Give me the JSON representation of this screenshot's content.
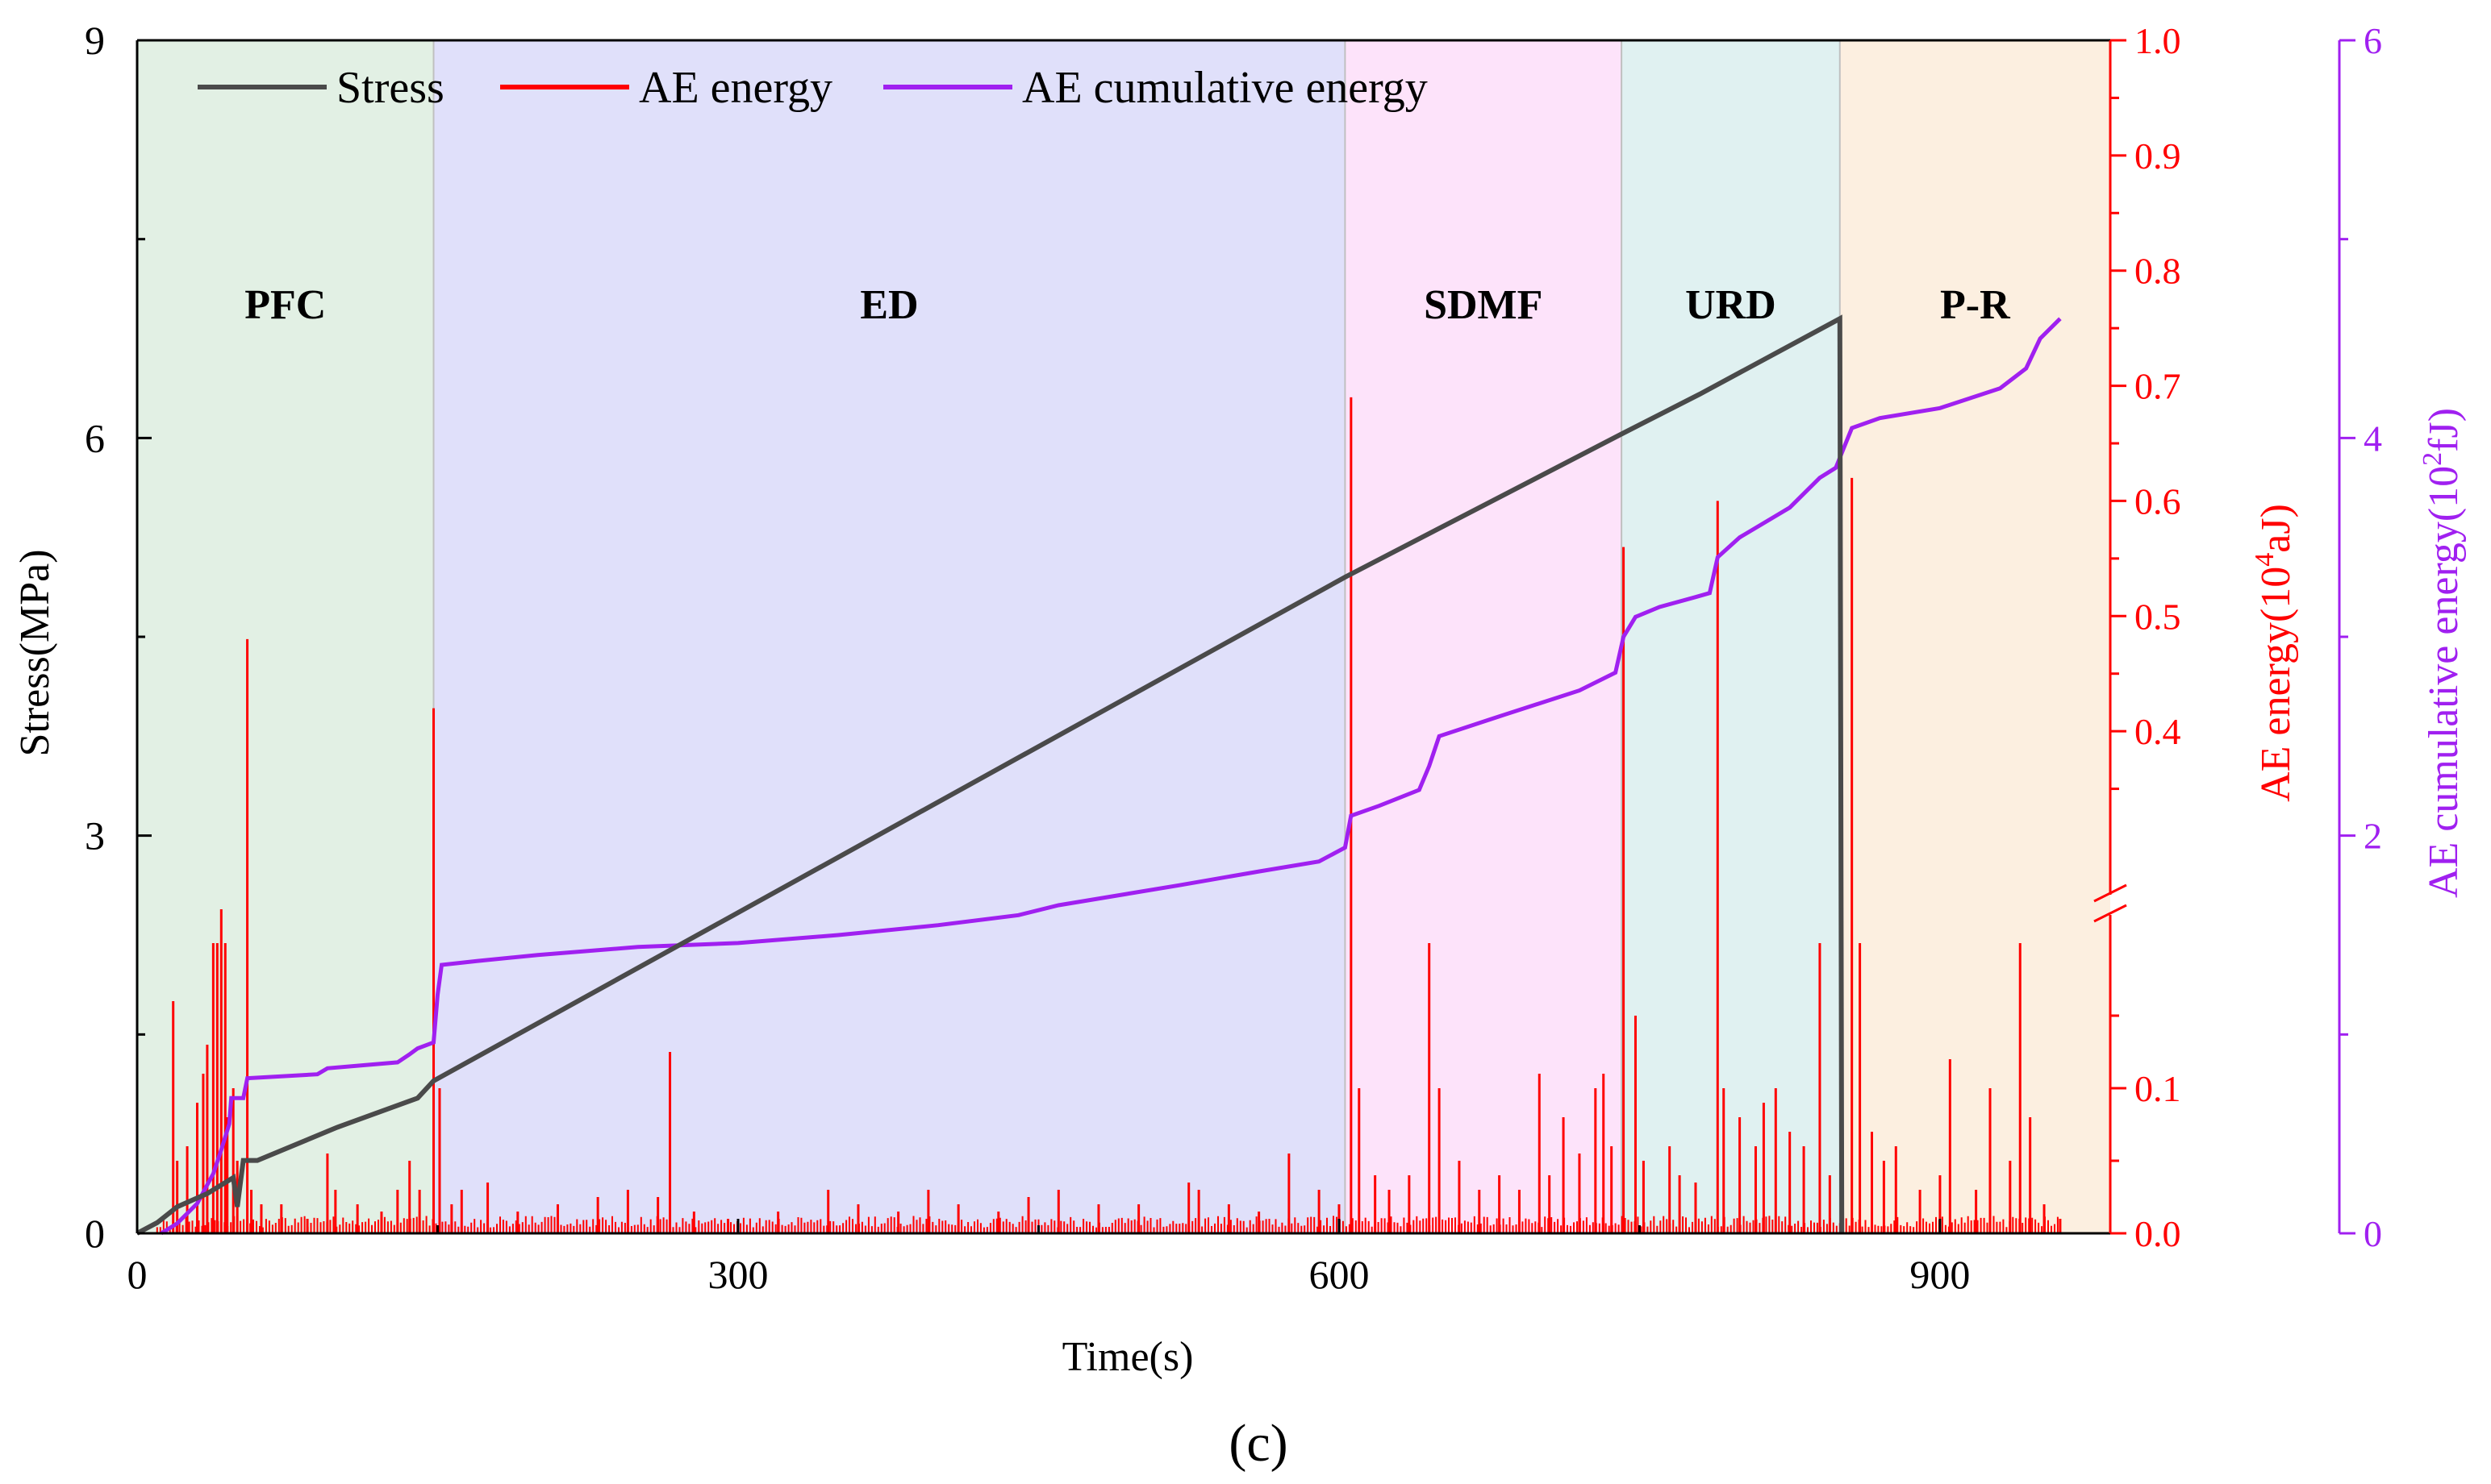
{
  "caption": "(c)",
  "chart_data": {
    "type": "line",
    "x_label": "Time(s)",
    "x_range": [
      0,
      985
    ],
    "x_ticks": [
      0,
      300,
      600,
      900
    ],
    "y_left": {
      "label": "Stress(MPa)",
      "range": [
        0,
        9
      ],
      "ticks": [
        0,
        3,
        6,
        9
      ],
      "color": "#000000"
    },
    "y_right": {
      "label_text": "AE energy(10",
      "label_sup": "4",
      "label_end": "aJ)",
      "color": "#ff0000",
      "broken": true,
      "break_at": 0.2,
      "lower_range": [
        0,
        0.2
      ],
      "upper_range": [
        0.3,
        1.0
      ],
      "tick_labels": [
        {
          "v": 0.0,
          "t": "0.0"
        },
        {
          "v": 0.1,
          "t": "0.1"
        },
        {
          "v": 0.4,
          "t": "0.4"
        },
        {
          "v": 0.5,
          "t": "0.5"
        },
        {
          "v": 0.6,
          "t": "0.6"
        },
        {
          "v": 0.7,
          "t": "0.7"
        },
        {
          "v": 0.8,
          "t": "0.8"
        },
        {
          "v": 0.9,
          "t": "0.9"
        },
        {
          "v": 1.0,
          "t": "1.0"
        }
      ],
      "minor_ticks": [
        0.05,
        0.15,
        0.35,
        0.45,
        0.55,
        0.65,
        0.75,
        0.85,
        0.95
      ]
    },
    "y_right2": {
      "label_text": "AE cumulative energy(10",
      "label_sup": "2",
      "label_end": "fJ)",
      "color": "#a020f0",
      "range": [
        0,
        6
      ],
      "ticks": [
        0,
        2,
        4,
        6
      ]
    },
    "regions": [
      {
        "label": "PFC",
        "start": 0,
        "end": 148,
        "color": "#e2f0e4"
      },
      {
        "label": "ED",
        "start": 148,
        "end": 603,
        "color": "#e0e0fa"
      },
      {
        "label": "SDMF",
        "start": 603,
        "end": 741,
        "color": "#fde3fa"
      },
      {
        "label": "URD",
        "start": 741,
        "end": 850,
        "color": "#e0f1f1"
      },
      {
        "label": "P-R",
        "start": 850,
        "end": 985,
        "color": "#fcefe0"
      }
    ],
    "legend": [
      "Stress",
      "AE energy",
      "AE cumulative energy"
    ],
    "series": [
      {
        "name": "Stress",
        "color": "#4a4a4a",
        "axis": "left",
        "points": [
          [
            0,
            0
          ],
          [
            10,
            0.08
          ],
          [
            20,
            0.2
          ],
          [
            35,
            0.3
          ],
          [
            48,
            0.42
          ],
          [
            50,
            0.2
          ],
          [
            53,
            0.55
          ],
          [
            60,
            0.55
          ],
          [
            100,
            0.8
          ],
          [
            140,
            1.02
          ],
          [
            148,
            1.15
          ],
          [
            603,
            4.95
          ],
          [
            741,
            6.03
          ],
          [
            780,
            6.33
          ],
          [
            850,
            6.9
          ],
          [
            851,
            0
          ]
        ]
      },
      {
        "name": "AE energy",
        "color": "#ff0000",
        "axis": "right",
        "spikes": [
          [
            18,
            0.16
          ],
          [
            20,
            0.05
          ],
          [
            25,
            0.06
          ],
          [
            30,
            0.09
          ],
          [
            33,
            0.11
          ],
          [
            35,
            0.13
          ],
          [
            38,
            0.2
          ],
          [
            40,
            0.2
          ],
          [
            42,
            0.235
          ],
          [
            44,
            0.2
          ],
          [
            45,
            0.08
          ],
          [
            48,
            0.1
          ],
          [
            50,
            0.05
          ],
          [
            55,
            0.48
          ],
          [
            57,
            0.03
          ],
          [
            62,
            0.02
          ],
          [
            72,
            0.02
          ],
          [
            85,
            0.01
          ],
          [
            95,
            0.055
          ],
          [
            99,
            0.03
          ],
          [
            110,
            0.02
          ],
          [
            122,
            0.015
          ],
          [
            130,
            0.03
          ],
          [
            136,
            0.05
          ],
          [
            141,
            0.03
          ],
          [
            148,
            0.42
          ],
          [
            151,
            0.1
          ],
          [
            157,
            0.02
          ],
          [
            162,
            0.03
          ],
          [
            175,
            0.035
          ],
          [
            190,
            0.015
          ],
          [
            210,
            0.02
          ],
          [
            230,
            0.025
          ],
          [
            245,
            0.03
          ],
          [
            260,
            0.025
          ],
          [
            266,
            0.125
          ],
          [
            278,
            0.015
          ],
          [
            295,
            0.01
          ],
          [
            320,
            0.015
          ],
          [
            345,
            0.03
          ],
          [
            360,
            0.02
          ],
          [
            380,
            0.015
          ],
          [
            395,
            0.03
          ],
          [
            410,
            0.02
          ],
          [
            430,
            0.015
          ],
          [
            445,
            0.025
          ],
          [
            460,
            0.03
          ],
          [
            480,
            0.02
          ],
          [
            500,
            0.02
          ],
          [
            525,
            0.035
          ],
          [
            530,
            0.03
          ],
          [
            545,
            0.02
          ],
          [
            560,
            0.015
          ],
          [
            575,
            0.055
          ],
          [
            590,
            0.03
          ],
          [
            600,
            0.02
          ],
          [
            606,
            0.69
          ],
          [
            610,
            0.1
          ],
          [
            618,
            0.04
          ],
          [
            625,
            0.03
          ],
          [
            635,
            0.04
          ],
          [
            645,
            0.2
          ],
          [
            650,
            0.1
          ],
          [
            660,
            0.05
          ],
          [
            670,
            0.03
          ],
          [
            680,
            0.04
          ],
          [
            690,
            0.03
          ],
          [
            700,
            0.11
          ],
          [
            705,
            0.04
          ],
          [
            712,
            0.08
          ],
          [
            720,
            0.055
          ],
          [
            728,
            0.1
          ],
          [
            732,
            0.11
          ],
          [
            736,
            0.06
          ],
          [
            742,
            0.56
          ],
          [
            748,
            0.15
          ],
          [
            752,
            0.05
          ],
          [
            765,
            0.06
          ],
          [
            770,
            0.04
          ],
          [
            778,
            0.035
          ],
          [
            789,
            0.6
          ],
          [
            792,
            0.1
          ],
          [
            800,
            0.08
          ],
          [
            808,
            0.06
          ],
          [
            812,
            0.09
          ],
          [
            818,
            0.1
          ],
          [
            825,
            0.07
          ],
          [
            832,
            0.06
          ],
          [
            840,
            0.2
          ],
          [
            845,
            0.04
          ],
          [
            856,
            0.62
          ],
          [
            860,
            0.2
          ],
          [
            866,
            0.07
          ],
          [
            872,
            0.05
          ],
          [
            878,
            0.06
          ],
          [
            890,
            0.03
          ],
          [
            900,
            0.04
          ],
          [
            905,
            0.12
          ],
          [
            918,
            0.03
          ],
          [
            925,
            0.1
          ],
          [
            935,
            0.05
          ],
          [
            940,
            0.2
          ],
          [
            945,
            0.08
          ],
          [
            952,
            0.02
          ],
          [
            960,
            0.01
          ]
        ]
      },
      {
        "name": "AE cumulative energy",
        "color": "#a020f0",
        "axis": "right2",
        "points": [
          [
            12,
            0
          ],
          [
            20,
            0.05
          ],
          [
            30,
            0.15
          ],
          [
            38,
            0.3
          ],
          [
            42,
            0.42
          ],
          [
            46,
            0.55
          ],
          [
            47,
            0.68
          ],
          [
            53,
            0.68
          ],
          [
            55,
            0.78
          ],
          [
            90,
            0.8
          ],
          [
            95,
            0.83
          ],
          [
            130,
            0.86
          ],
          [
            136,
            0.9
          ],
          [
            140,
            0.93
          ],
          [
            148,
            0.96
          ],
          [
            150,
            1.2
          ],
          [
            152,
            1.35
          ],
          [
            170,
            1.37
          ],
          [
            200,
            1.4
          ],
          [
            250,
            1.44
          ],
          [
            300,
            1.46
          ],
          [
            350,
            1.5
          ],
          [
            400,
            1.55
          ],
          [
            440,
            1.6
          ],
          [
            460,
            1.65
          ],
          [
            520,
            1.75
          ],
          [
            560,
            1.82
          ],
          [
            590,
            1.87
          ],
          [
            603,
            1.94
          ],
          [
            606,
            2.1
          ],
          [
            620,
            2.15
          ],
          [
            640,
            2.23
          ],
          [
            645,
            2.35
          ],
          [
            650,
            2.5
          ],
          [
            680,
            2.6
          ],
          [
            720,
            2.73
          ],
          [
            738,
            2.82
          ],
          [
            742,
            3.0
          ],
          [
            748,
            3.1
          ],
          [
            760,
            3.15
          ],
          [
            778,
            3.2
          ],
          [
            785,
            3.22
          ],
          [
            789,
            3.4
          ],
          [
            800,
            3.5
          ],
          [
            825,
            3.65
          ],
          [
            840,
            3.8
          ],
          [
            848,
            3.85
          ],
          [
            852,
            3.95
          ],
          [
            856,
            4.05
          ],
          [
            870,
            4.1
          ],
          [
            900,
            4.15
          ],
          [
            915,
            4.2
          ],
          [
            930,
            4.25
          ],
          [
            943,
            4.35
          ],
          [
            950,
            4.5
          ],
          [
            960,
            4.6
          ]
        ]
      }
    ]
  }
}
